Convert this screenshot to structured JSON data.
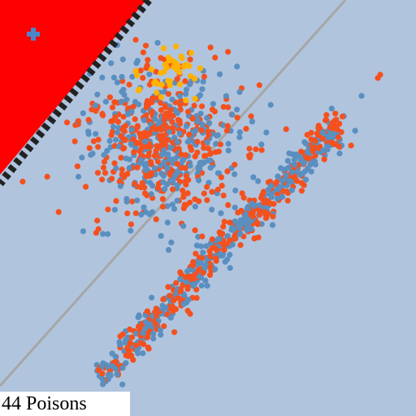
{
  "hud": {
    "count": "44",
    "label": "Poisons"
  },
  "colors": {
    "background": "#b0c4de",
    "danger_zone": "#ff0000",
    "wall_dash": "#222222",
    "diagonal_line": "#a6a6a6",
    "dot_blue": "#5a8fc0",
    "dot_orange": "#f4511e",
    "dot_gold": "#ffb300",
    "player_cross": "#4a86c8"
  },
  "icons": {
    "player": "cross-icon"
  }
}
